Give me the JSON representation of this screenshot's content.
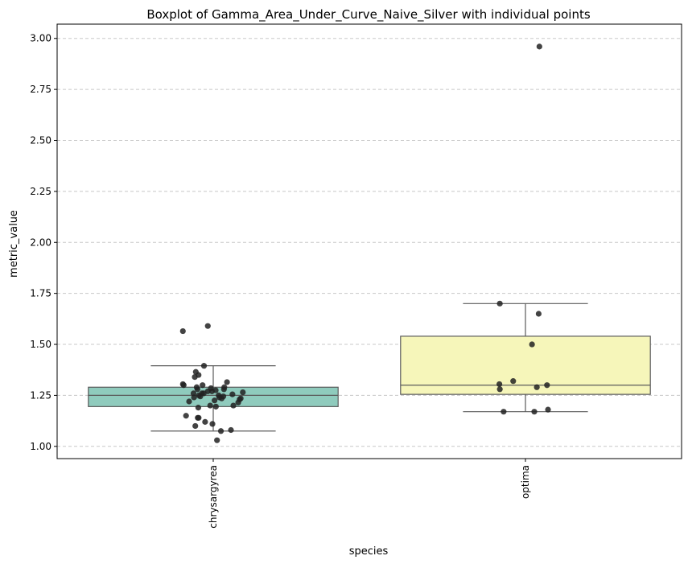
{
  "chart_data": {
    "type": "box",
    "title": "Boxplot of Gamma_Area_Under_Curve_Naive_Silver with individual points",
    "xlabel": "species",
    "ylabel": "metric_value",
    "categories": [
      "chrysargyrea",
      "optima"
    ],
    "ylim": [
      0.94,
      3.07
    ],
    "yticks": [
      1.0,
      1.25,
      1.5,
      1.75,
      2.0,
      2.25,
      2.5,
      2.75,
      3.0
    ],
    "ytick_labels": [
      "1.00",
      "1.25",
      "1.50",
      "1.75",
      "2.00",
      "2.25",
      "2.50",
      "2.75",
      "3.00"
    ],
    "grid": "y-dashed",
    "box_colors": [
      "#8fcbbd",
      "#f6f6ba"
    ],
    "boxes": [
      {
        "category": "chrysargyrea",
        "whisker_low": 1.075,
        "q1": 1.195,
        "median": 1.25,
        "q3": 1.29,
        "whisker_high": 1.395
      },
      {
        "category": "optima",
        "whisker_low": 1.17,
        "q1": 1.255,
        "median": 1.3,
        "q3": 1.54,
        "whisker_high": 1.7
      }
    ],
    "points": [
      {
        "category": "chrysargyrea",
        "values": [
          1.59,
          1.565,
          1.395,
          1.365,
          1.35,
          1.34,
          1.315,
          1.305,
          1.3,
          1.3,
          1.29,
          1.29,
          1.285,
          1.28,
          1.28,
          1.275,
          1.27,
          1.27,
          1.265,
          1.26,
          1.26,
          1.26,
          1.255,
          1.25,
          1.25,
          1.245,
          1.245,
          1.24,
          1.24,
          1.235,
          1.235,
          1.23,
          1.225,
          1.22,
          1.215,
          1.2,
          1.2,
          1.195,
          1.19,
          1.15,
          1.14,
          1.14,
          1.12,
          1.11,
          1.1,
          1.08,
          1.075,
          1.03
        ]
      },
      {
        "category": "optima",
        "values": [
          2.96,
          1.7,
          1.65,
          1.5,
          1.32,
          1.305,
          1.3,
          1.29,
          1.28,
          1.18,
          1.17,
          1.17
        ]
      }
    ]
  }
}
